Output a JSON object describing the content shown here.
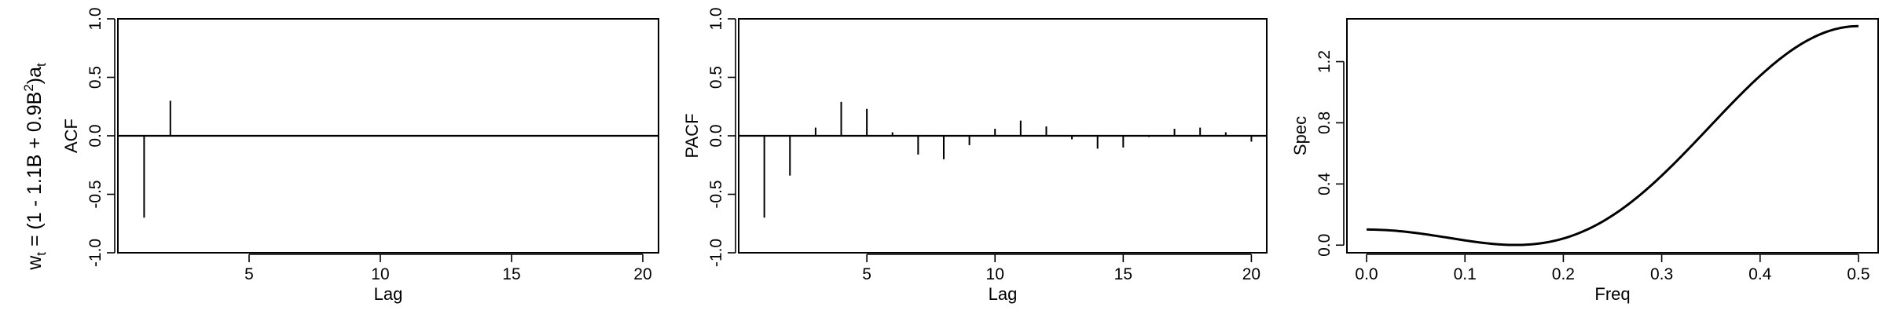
{
  "row_title": {
    "w": "w",
    "w_sub": "t",
    "eq": " = (1 - 1.1B + 0.9B",
    "sup": "2",
    "close": ")a",
    "a_sub": "t"
  },
  "chart_data": [
    {
      "type": "bar",
      "name": "acf",
      "ylabel": "ACF",
      "xlabel": "Lag",
      "xlim": [
        0,
        20.6
      ],
      "ylim": [
        -1.0,
        1.0
      ],
      "xticks": [
        "5",
        "10",
        "15",
        "20"
      ],
      "xtick_values": [
        5,
        10,
        15,
        20
      ],
      "yticks": [
        "-1.0",
        "-0.5",
        "0.0",
        "0.5",
        "1.0"
      ],
      "ytick_values": [
        -1.0,
        -0.5,
        0.0,
        0.5,
        1.0
      ],
      "lags": [
        1,
        2,
        3,
        4,
        5,
        6,
        7,
        8,
        9,
        10,
        11,
        12,
        13,
        14,
        15,
        16,
        17,
        18,
        19,
        20
      ],
      "values": [
        -0.7,
        0.3,
        0,
        0,
        0,
        0,
        0,
        0,
        0,
        0,
        0,
        0,
        0,
        0,
        0,
        0,
        0,
        0,
        0,
        0
      ]
    },
    {
      "type": "bar",
      "name": "pacf",
      "ylabel": "PACF",
      "xlabel": "Lag",
      "xlim": [
        0,
        20.6
      ],
      "ylim": [
        -1.0,
        1.0
      ],
      "xticks": [
        "5",
        "10",
        "15",
        "20"
      ],
      "xtick_values": [
        5,
        10,
        15,
        20
      ],
      "yticks": [
        "-1.0",
        "-0.5",
        "0.0",
        "0.5",
        "1.0"
      ],
      "ytick_values": [
        -1.0,
        -0.5,
        0.0,
        0.5,
        1.0
      ],
      "lags": [
        1,
        2,
        3,
        4,
        5,
        6,
        7,
        8,
        9,
        10,
        11,
        12,
        13,
        14,
        15,
        16,
        17,
        18,
        19,
        20
      ],
      "values": [
        -0.7,
        -0.34,
        0.07,
        0.29,
        0.23,
        0.03,
        -0.16,
        -0.2,
        -0.08,
        0.06,
        0.13,
        0.08,
        -0.03,
        -0.11,
        -0.1,
        -0.01,
        0.06,
        0.07,
        0.03,
        -0.05
      ]
    },
    {
      "type": "line",
      "name": "spec",
      "ylabel": "Spec",
      "xlabel": "Freq",
      "xlim": [
        -0.02,
        0.52
      ],
      "ylim": [
        -0.05,
        1.48
      ],
      "xticks": [
        "0.0",
        "0.1",
        "0.2",
        "0.3",
        "0.4",
        "0.5"
      ],
      "xtick_values": [
        0.0,
        0.1,
        0.2,
        0.3,
        0.4,
        0.5
      ],
      "yticks": [
        "0.0",
        "0.4",
        "0.8",
        "1.2"
      ],
      "ytick_values": [
        0.0,
        0.4,
        0.8,
        1.2
      ],
      "ma_coefficients": [
        -1.1,
        0.9
      ],
      "freq_range": [
        0.0,
        0.5
      ]
    }
  ]
}
